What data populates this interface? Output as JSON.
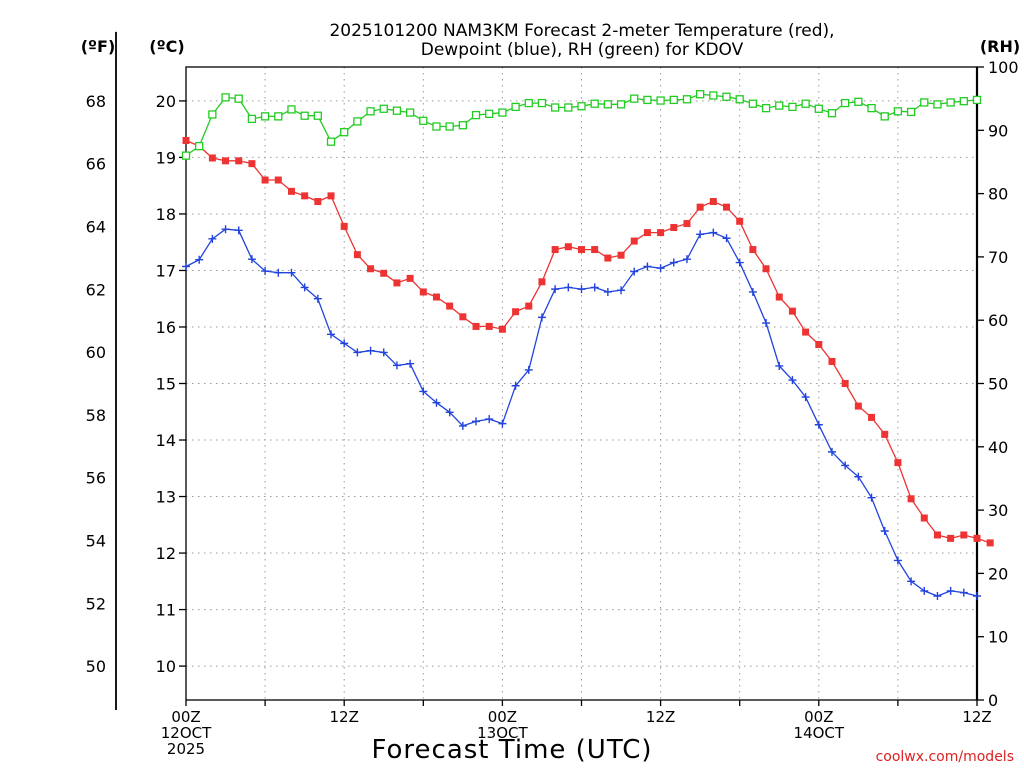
{
  "chart_data": {
    "type": "line",
    "title_line1": "2025101200 NAM3KM Forecast 2-meter Temperature (red),",
    "title_line2": "Dewpoint (blue), RH (green) for KDOV",
    "left_outer_axis": {
      "unit_label": "(ºF)",
      "ticks": [
        50,
        52,
        54,
        56,
        58,
        60,
        62,
        64,
        66,
        68
      ]
    },
    "left_axis": {
      "unit_label": "(ºC)",
      "ylim": [
        9.4,
        20.6
      ],
      "ticks": [
        10,
        11,
        12,
        13,
        14,
        15,
        16,
        17,
        18,
        19,
        20
      ]
    },
    "right_axis": {
      "unit_label": "(RH)",
      "ylim": [
        0,
        100
      ],
      "ticks": [
        0,
        10,
        20,
        30,
        40,
        50,
        60,
        70,
        80,
        90,
        100
      ]
    },
    "xlabel": "Forecast Time (UTC)",
    "xlim": [
      0,
      60
    ],
    "xticks": [
      {
        "hour": 0,
        "line1": "00Z",
        "line2": "12OCT",
        "line3": "2025"
      },
      {
        "hour": 12,
        "line1": "12Z",
        "line2": "",
        "line3": ""
      },
      {
        "hour": 24,
        "line1": "00Z",
        "line2": "13OCT",
        "line3": ""
      },
      {
        "hour": 36,
        "line1": "12Z",
        "line2": "",
        "line3": ""
      },
      {
        "hour": 48,
        "line1": "00Z",
        "line2": "14OCT",
        "line3": ""
      },
      {
        "hour": 60,
        "line1": "12Z",
        "line2": "",
        "line3": ""
      }
    ],
    "credit": "coolwx.com/models",
    "series": [
      {
        "name": "2-meter Temperature",
        "axis": "left",
        "color": "#ee3333",
        "marker": "filled-square",
        "values": [
          19.3,
          19.2,
          18.99,
          18.94,
          18.94,
          18.89,
          18.6,
          18.6,
          18.4,
          18.32,
          18.22,
          18.32,
          17.78,
          17.28,
          17.03,
          16.95,
          16.78,
          16.86,
          16.62,
          16.53,
          16.37,
          16.18,
          16.01,
          16.01,
          15.96,
          16.27,
          16.37,
          16.8,
          17.37,
          17.42,
          17.37,
          17.37,
          17.22,
          17.27,
          17.52,
          17.67,
          17.67,
          17.76,
          17.83,
          18.12,
          18.22,
          18.12,
          17.87,
          17.37,
          17.03,
          16.53,
          16.28,
          15.91,
          15.69,
          15.39,
          15.0,
          14.6,
          14.4,
          14.1,
          13.6,
          12.96,
          12.62,
          12.32,
          12.26,
          12.32,
          12.26,
          12.18
        ]
      },
      {
        "name": "Dewpoint",
        "axis": "left",
        "color": "#2244dd",
        "marker": "plus",
        "values": [
          17.07,
          17.19,
          17.56,
          17.73,
          17.71,
          17.2,
          16.99,
          16.96,
          16.96,
          16.7,
          16.5,
          15.87,
          15.71,
          15.55,
          15.58,
          15.55,
          15.32,
          15.35,
          14.86,
          14.66,
          14.49,
          14.25,
          14.33,
          14.37,
          14.29,
          14.96,
          15.24,
          16.17,
          16.67,
          16.7,
          16.67,
          16.7,
          16.62,
          16.65,
          16.98,
          17.07,
          17.04,
          17.14,
          17.2,
          17.64,
          17.67,
          17.57,
          17.14,
          16.62,
          16.07,
          15.31,
          15.06,
          14.76,
          14.27,
          13.79,
          13.55,
          13.35,
          12.98,
          12.39,
          11.87,
          11.5,
          11.33,
          11.24,
          11.33,
          11.3,
          11.24
        ]
      },
      {
        "name": "RH",
        "axis": "right",
        "color": "#22cc22",
        "marker": "open-square",
        "values": [
          86,
          87.5,
          92.5,
          95.2,
          95,
          91.8,
          92.2,
          92.2,
          93.3,
          92.3,
          92.3,
          88.2,
          89.7,
          91.4,
          93,
          93.4,
          93.1,
          92.8,
          91.5,
          90.6,
          90.6,
          90.8,
          92.4,
          92.6,
          92.8,
          93.7,
          94.3,
          94.3,
          93.6,
          93.6,
          93.8,
          94.2,
          94.1,
          94.1,
          95,
          94.8,
          94.7,
          94.8,
          94.9,
          95.7,
          95.5,
          95.3,
          94.9,
          94.2,
          93.5,
          93.9,
          93.7,
          94.2,
          93.4,
          92.7,
          94.3,
          94.5,
          93.5,
          92.2,
          93.0,
          92.9,
          94.4,
          94.1,
          94.4,
          94.6,
          94.8
        ]
      }
    ]
  }
}
